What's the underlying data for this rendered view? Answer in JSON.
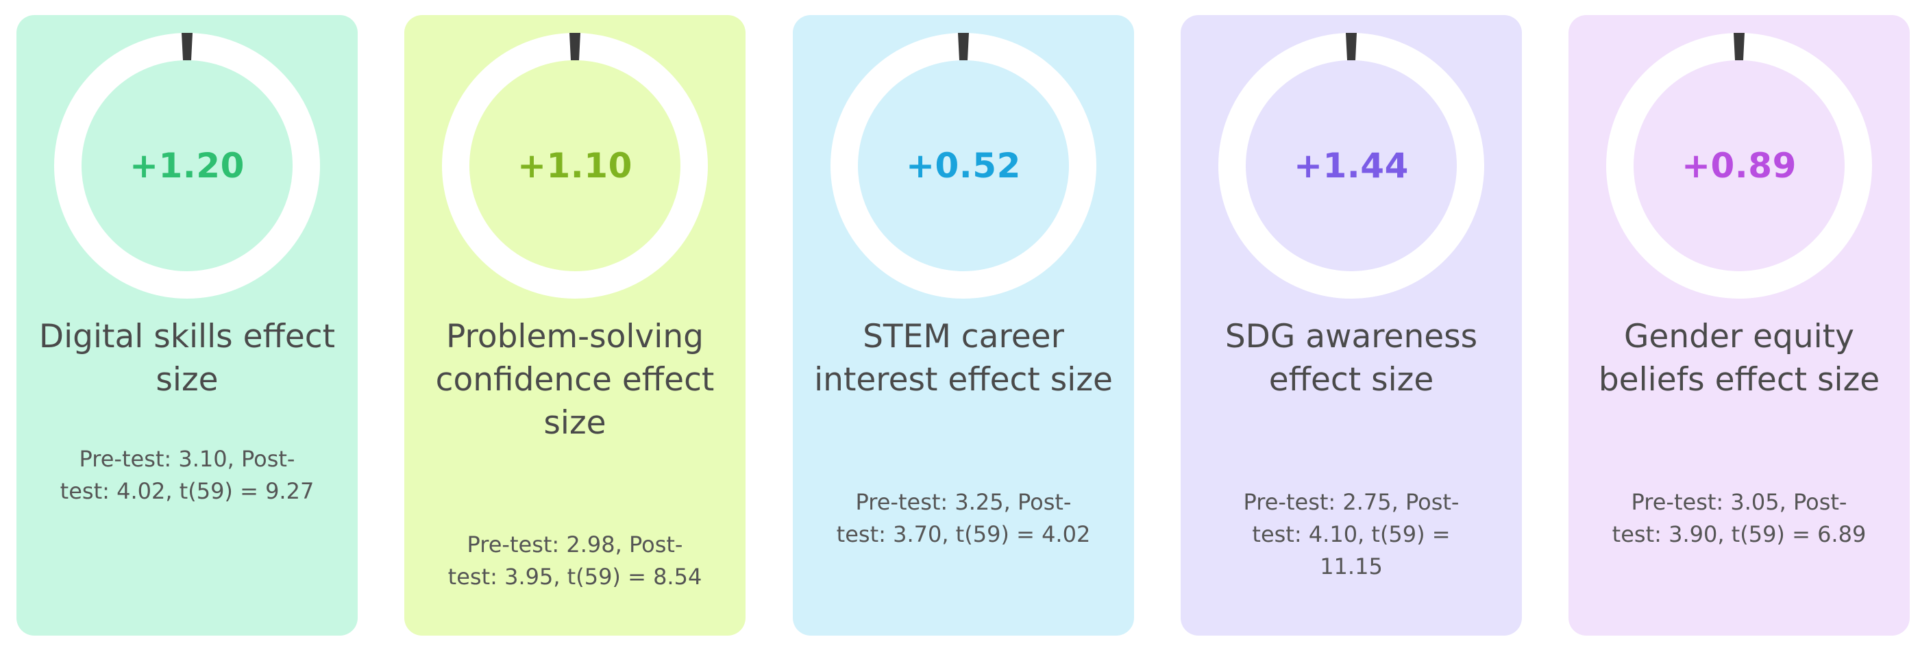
{
  "chart_data": {
    "type": "gauge-cards",
    "title": "",
    "metrics": [
      {
        "label": "Digital skills effect size",
        "value_label": "+1.20",
        "value": 1.2,
        "stats": "Pre-test: 3.10, Post-test: 4.02, t(59) = 9.27",
        "pre_test": 3.1,
        "post_test": 4.02,
        "t_statistic": 9.27,
        "df": 59,
        "accent_color": "#2fbf71",
        "card_color": "#c7f7e2"
      },
      {
        "label": "Problem-solving confidence effect size",
        "value_label": "+1.10",
        "value": 1.1,
        "stats": "Pre-test: 2.98, Post-test: 3.95, t(59) = 8.54",
        "pre_test": 2.98,
        "post_test": 3.95,
        "t_statistic": 8.54,
        "df": 59,
        "accent_color": "#7fb321",
        "card_color": "#e8fcb8"
      },
      {
        "label": "STEM career interest effect size",
        "value_label": "+0.52",
        "value": 0.52,
        "stats": "Pre-test: 3.25, Post-test: 3.70, t(59) = 4.02",
        "pre_test": 3.25,
        "post_test": 3.7,
        "t_statistic": 4.02,
        "df": 59,
        "accent_color": "#1aa3dc",
        "card_color": "#d2f1fb"
      },
      {
        "label": "SDG awareness effect size",
        "value_label": "+1.44",
        "value": 1.44,
        "stats": "Pre-test: 2.75, Post-test: 4.10, t(59) = 11.15",
        "pre_test": 2.75,
        "post_test": 4.1,
        "t_statistic": 11.15,
        "df": 59,
        "accent_color": "#7b5ce6",
        "card_color": "#e6e2fd"
      },
      {
        "label": "Gender equity beliefs effect size",
        "value_label": "+0.89",
        "value": 0.89,
        "stats": "Pre-test: 3.05, Post-test: 3.90, t(59) = 6.89",
        "pre_test": 3.05,
        "post_test": 3.9,
        "t_statistic": 6.89,
        "df": 59,
        "accent_color": "#b84ee0",
        "card_color": "#f2e2fc"
      }
    ]
  }
}
